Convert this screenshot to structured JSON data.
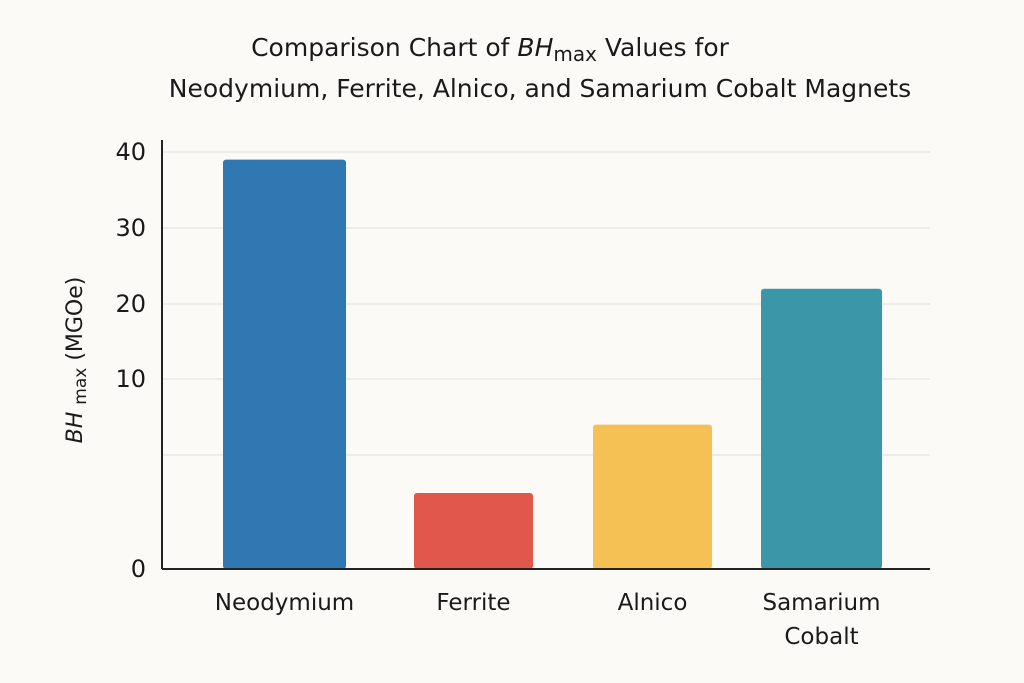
{
  "chart_data": {
    "type": "bar",
    "title_line1": "Comparison Chart of BHmax Values for",
    "title_line2": "Neodymium, Ferrite, Alnico, and Samarium Cobalt Magnets",
    "title_parts": {
      "pre": "Comparison Chart of ",
      "bh": "BH",
      "sub": "max",
      "post": " Values for"
    },
    "ylabel_parts": {
      "bh": "BH",
      "sub": "max",
      "unit": " (MGOe)"
    },
    "ylabel": "BHmax (MGOe)",
    "xlabel": "",
    "categories": [
      "Neodymium",
      "Ferrite",
      "Alnico",
      "Samarium Cobalt"
    ],
    "category_lines": [
      [
        "Neodymium"
      ],
      [
        "Ferrite"
      ],
      [
        "Alnico"
      ],
      [
        "Samarium",
        "Cobalt"
      ]
    ],
    "values": [
      39,
      4,
      7.6,
      22
    ],
    "colors": [
      "#2f78b1",
      "#e1574b",
      "#f5c154",
      "#3b97a8"
    ],
    "yticks": [
      "0",
      "10",
      "20",
      "30",
      "40"
    ],
    "ylim": [
      0,
      40
    ],
    "grid": true,
    "legend": "none"
  }
}
